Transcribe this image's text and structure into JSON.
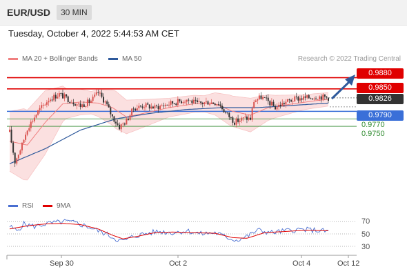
{
  "header": {
    "pair": "EUR/USD",
    "timeframe": "30 MIN"
  },
  "datetime": "Tuesday, October 4, 2022 5:44:53 AM CET",
  "credit": "Research © 2022 Trading Central",
  "legend_main": [
    {
      "label": "MA 20 + Bollinger Bands",
      "color": "#f08080"
    },
    {
      "label": "MA 50",
      "color": "#2f5a9c"
    }
  ],
  "legend_rsi": [
    {
      "label": "RSI",
      "color": "#4a6fd1"
    },
    {
      "label": "9MA",
      "color": "#e00000"
    }
  ],
  "colors": {
    "up": "#d9534f",
    "down": "#333333",
    "resistance": "#e00000",
    "pivot": "#3a6fd8",
    "support": "#2e8a2e",
    "last": "#333333",
    "arrow": "#2f5a9c"
  },
  "chart_data": [
    {
      "type": "candlestick",
      "title": "EUR/USD 30 MIN",
      "yrange": [
        0.9575,
        0.9905
      ],
      "x_ticks": [
        "Sep 30",
        "Oct 2",
        "Oct 4",
        "Oct 12"
      ],
      "last_price": "0.9826",
      "levels": [
        {
          "value": "0.9880",
          "role": "resistance"
        },
        {
          "value": "0.9850",
          "role": "resistance"
        },
        {
          "value": "0.9790",
          "role": "pivot"
        },
        {
          "value": "0.9770",
          "role": "support"
        },
        {
          "value": "0.9750",
          "role": "support"
        }
      ],
      "anchors": [
        [
          0,
          0.9735
        ],
        [
          3,
          0.9655
        ],
        [
          7,
          0.97
        ],
        [
          10,
          0.9745
        ],
        [
          16,
          0.979
        ],
        [
          22,
          0.9822
        ],
        [
          28,
          0.9836
        ],
        [
          34,
          0.982
        ],
        [
          40,
          0.9805
        ],
        [
          46,
          0.9818
        ],
        [
          50,
          0.984
        ],
        [
          54,
          0.9815
        ],
        [
          58,
          0.9775
        ],
        [
          62,
          0.9748
        ],
        [
          66,
          0.9765
        ],
        [
          70,
          0.9798
        ],
        [
          76,
          0.9806
        ],
        [
          82,
          0.98
        ],
        [
          88,
          0.9808
        ],
        [
          94,
          0.9815
        ],
        [
          100,
          0.9822
        ],
        [
          106,
          0.981
        ],
        [
          112,
          0.9815
        ],
        [
          118,
          0.9812
        ],
        [
          122,
          0.9786
        ],
        [
          127,
          0.9762
        ],
        [
          133,
          0.9772
        ],
        [
          136,
          0.977
        ],
        [
          138,
          0.9818
        ],
        [
          142,
          0.9828
        ],
        [
          146,
          0.9816
        ],
        [
          150,
          0.98
        ],
        [
          156,
          0.9815
        ],
        [
          162,
          0.9824
        ],
        [
          168,
          0.9826
        ],
        [
          174,
          0.983
        ],
        [
          178,
          0.9828
        ],
        [
          180,
          0.9826
        ]
      ],
      "ma20_anchors": [
        [
          0,
          0.971
        ],
        [
          10,
          0.97
        ],
        [
          20,
          0.976
        ],
        [
          30,
          0.981
        ],
        [
          40,
          0.9815
        ],
        [
          50,
          0.9812
        ],
        [
          58,
          0.98
        ],
        [
          66,
          0.9775
        ],
        [
          76,
          0.9785
        ],
        [
          90,
          0.98
        ],
        [
          104,
          0.981
        ],
        [
          116,
          0.981
        ],
        [
          126,
          0.979
        ],
        [
          136,
          0.978
        ],
        [
          146,
          0.98
        ],
        [
          160,
          0.981
        ],
        [
          172,
          0.9818
        ],
        [
          180,
          0.9822
        ]
      ],
      "bb_width_anchors": [
        [
          0,
          0.008
        ],
        [
          8,
          0.0095
        ],
        [
          20,
          0.0085
        ],
        [
          32,
          0.004
        ],
        [
          46,
          0.003
        ],
        [
          60,
          0.005
        ],
        [
          72,
          0.004
        ],
        [
          90,
          0.0025
        ],
        [
          110,
          0.0022
        ],
        [
          124,
          0.004
        ],
        [
          136,
          0.0045
        ],
        [
          150,
          0.003
        ],
        [
          166,
          0.002
        ],
        [
          180,
          0.0018
        ]
      ],
      "ma50_anchors": [
        [
          0,
          0.965
        ],
        [
          20,
          0.969
        ],
        [
          40,
          0.974
        ],
        [
          60,
          0.977
        ],
        [
          80,
          0.9785
        ],
        [
          100,
          0.9795
        ],
        [
          120,
          0.98
        ],
        [
          140,
          0.98
        ],
        [
          160,
          0.9806
        ],
        [
          180,
          0.9812
        ]
      ]
    },
    {
      "type": "line",
      "title": "RSI",
      "yrange": [
        20,
        80
      ],
      "levels": [
        "70",
        "50",
        "30"
      ],
      "rsi_anchors": [
        [
          0,
          62
        ],
        [
          4,
          55
        ],
        [
          8,
          66
        ],
        [
          14,
          62
        ],
        [
          20,
          66
        ],
        [
          26,
          68
        ],
        [
          32,
          70
        ],
        [
          38,
          67
        ],
        [
          44,
          62
        ],
        [
          50,
          55
        ],
        [
          56,
          48
        ],
        [
          60,
          42
        ],
        [
          64,
          38
        ],
        [
          70,
          46
        ],
        [
          76,
          50
        ],
        [
          84,
          54
        ],
        [
          92,
          52
        ],
        [
          100,
          55
        ],
        [
          108,
          50
        ],
        [
          116,
          52
        ],
        [
          122,
          45
        ],
        [
          128,
          40
        ],
        [
          134,
          46
        ],
        [
          140,
          56
        ],
        [
          148,
          52
        ],
        [
          156,
          55
        ],
        [
          164,
          57
        ],
        [
          172,
          56
        ],
        [
          180,
          54
        ]
      ],
      "ma9_anchors": [
        [
          0,
          58
        ],
        [
          10,
          63
        ],
        [
          20,
          66
        ],
        [
          30,
          67
        ],
        [
          40,
          65
        ],
        [
          50,
          58
        ],
        [
          58,
          48
        ],
        [
          64,
          42
        ],
        [
          72,
          46
        ],
        [
          82,
          52
        ],
        [
          92,
          53
        ],
        [
          104,
          52
        ],
        [
          116,
          51
        ],
        [
          126,
          44
        ],
        [
          134,
          43
        ],
        [
          144,
          52
        ],
        [
          156,
          54
        ],
        [
          168,
          56
        ],
        [
          180,
          55
        ]
      ]
    }
  ]
}
